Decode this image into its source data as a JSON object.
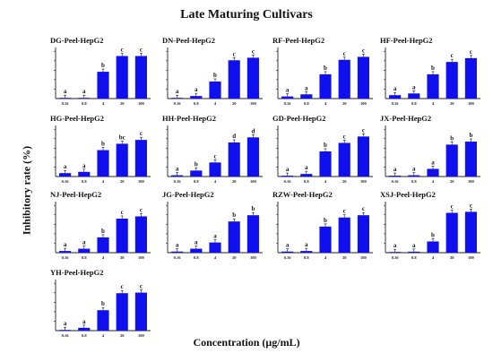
{
  "title": "Late Maturing Cultivars",
  "ylabel": "Inhibitory rate (%)",
  "xlabel": "Concentration (μg/mL)",
  "colors": {
    "bar": "#1010ee",
    "axis": "#222222"
  },
  "chart_data": [
    {
      "type": "bar",
      "title": "DG-Peel-HepG2",
      "categories": [
        "0.16",
        "0.8",
        "4",
        "20",
        "100"
      ],
      "values": [
        0,
        0,
        63,
        100,
        100
      ],
      "labels": [
        "a",
        "a",
        "b",
        "c",
        "c"
      ],
      "ylim": [
        0,
        120
      ],
      "xlabel": "",
      "ylabel": ""
    },
    {
      "type": "bar",
      "title": "DN-Peel-HepG2",
      "categories": [
        "0.16",
        "0.8",
        "4",
        "20",
        "100"
      ],
      "values": [
        1,
        6,
        40,
        90,
        96
      ],
      "labels": [
        "a",
        "a",
        "b",
        "c",
        "c"
      ],
      "ylim": [
        0,
        120
      ],
      "xlabel": "",
      "ylabel": ""
    },
    {
      "type": "bar",
      "title": "RF-Peel-HepG2",
      "categories": [
        "0.16",
        "0.8",
        "4",
        "20",
        "100"
      ],
      "values": [
        5,
        10,
        57,
        91,
        98
      ],
      "labels": [
        "a",
        "a",
        "b",
        "c",
        "c"
      ],
      "ylim": [
        0,
        120
      ],
      "xlabel": "",
      "ylabel": ""
    },
    {
      "type": "bar",
      "title": "HF-Peel-HepG2",
      "categories": [
        "0.16",
        "0.8",
        "4",
        "20",
        "100"
      ],
      "values": [
        8,
        12,
        57,
        86,
        95
      ],
      "labels": [
        "a",
        "a",
        "b",
        "c",
        "c"
      ],
      "ylim": [
        0,
        120
      ],
      "xlabel": "",
      "ylabel": ""
    },
    {
      "type": "bar",
      "title": "HG-Peel-HepG2",
      "categories": [
        "0.16",
        "0.8",
        "4",
        "20",
        "100"
      ],
      "values": [
        8,
        11,
        62,
        77,
        86
      ],
      "labels": [
        "a",
        "a",
        "b",
        "bc",
        "c"
      ],
      "ylim": [
        0,
        120
      ],
      "xlabel": "",
      "ylabel": ""
    },
    {
      "type": "bar",
      "title": "HH-Peel-HepG2",
      "categories": [
        "0.16",
        "0.8",
        "4",
        "20",
        "100"
      ],
      "values": [
        3,
        14,
        33,
        80,
        92
      ],
      "labels": [
        "a",
        "b",
        "c",
        "d",
        "d"
      ],
      "ylim": [
        0,
        120
      ],
      "xlabel": "",
      "ylabel": ""
    },
    {
      "type": "bar",
      "title": "GD-Peel-HepG2",
      "categories": [
        "0.16",
        "0.8",
        "4",
        "20",
        "100"
      ],
      "values": [
        2,
        6,
        59,
        79,
        94
      ],
      "labels": [
        "a",
        "a",
        "b",
        "c",
        "c"
      ],
      "ylim": [
        0,
        120
      ],
      "xlabel": "",
      "ylabel": ""
    },
    {
      "type": "bar",
      "title": "JX-Peel-HepG2",
      "categories": [
        "0.16",
        "0.8",
        "4",
        "20",
        "100"
      ],
      "values": [
        2,
        3,
        18,
        75,
        82
      ],
      "labels": [
        "a",
        "a",
        "a",
        "b",
        "b"
      ],
      "ylim": [
        0,
        120
      ],
      "xlabel": "",
      "ylabel": ""
    },
    {
      "type": "bar",
      "title": "NJ-Peel-HepG2",
      "categories": [
        "0.16",
        "0.8",
        "4",
        "20",
        "100"
      ],
      "values": [
        3,
        7,
        27,
        60,
        64
      ],
      "labels": [
        "a",
        "a",
        "b",
        "c",
        "c"
      ],
      "ylim": [
        0,
        90
      ],
      "xlabel": "",
      "ylabel": ""
    },
    {
      "type": "bar",
      "title": "JG-Peel-HepG2",
      "categories": [
        "0.16",
        "0.8",
        "4",
        "20",
        "100"
      ],
      "values": [
        2,
        7,
        18,
        55,
        66
      ],
      "labels": [
        "a",
        "a",
        "a",
        "b",
        "b"
      ],
      "ylim": [
        0,
        90
      ],
      "xlabel": "",
      "ylabel": ""
    },
    {
      "type": "bar",
      "title": "RZW-Peel-HepG2",
      "categories": [
        "0.16",
        "0.8",
        "4",
        "20",
        "100"
      ],
      "values": [
        2,
        3,
        46,
        62,
        66
      ],
      "labels": [
        "a",
        "a",
        "b",
        "c",
        "c"
      ],
      "ylim": [
        0,
        90
      ],
      "xlabel": "",
      "ylabel": ""
    },
    {
      "type": "bar",
      "title": "XSJ-Peel-HepG2",
      "categories": [
        "0.16",
        "0.8",
        "4",
        "20",
        "100"
      ],
      "values": [
        1,
        2,
        22,
        78,
        80
      ],
      "labels": [
        "a",
        "a",
        "b",
        "c",
        "c"
      ],
      "ylim": [
        0,
        100
      ],
      "xlabel": "",
      "ylabel": ""
    },
    {
      "type": "bar",
      "title": "YH-Peel-HepG2",
      "categories": [
        "0.16",
        "0.8",
        "4",
        "20",
        "100"
      ],
      "values": [
        1,
        5,
        36,
        66,
        67
      ],
      "labels": [
        "a",
        "a",
        "b",
        "c",
        "c"
      ],
      "ylim": [
        0,
        90
      ],
      "xlabel": "",
      "ylabel": ""
    }
  ]
}
